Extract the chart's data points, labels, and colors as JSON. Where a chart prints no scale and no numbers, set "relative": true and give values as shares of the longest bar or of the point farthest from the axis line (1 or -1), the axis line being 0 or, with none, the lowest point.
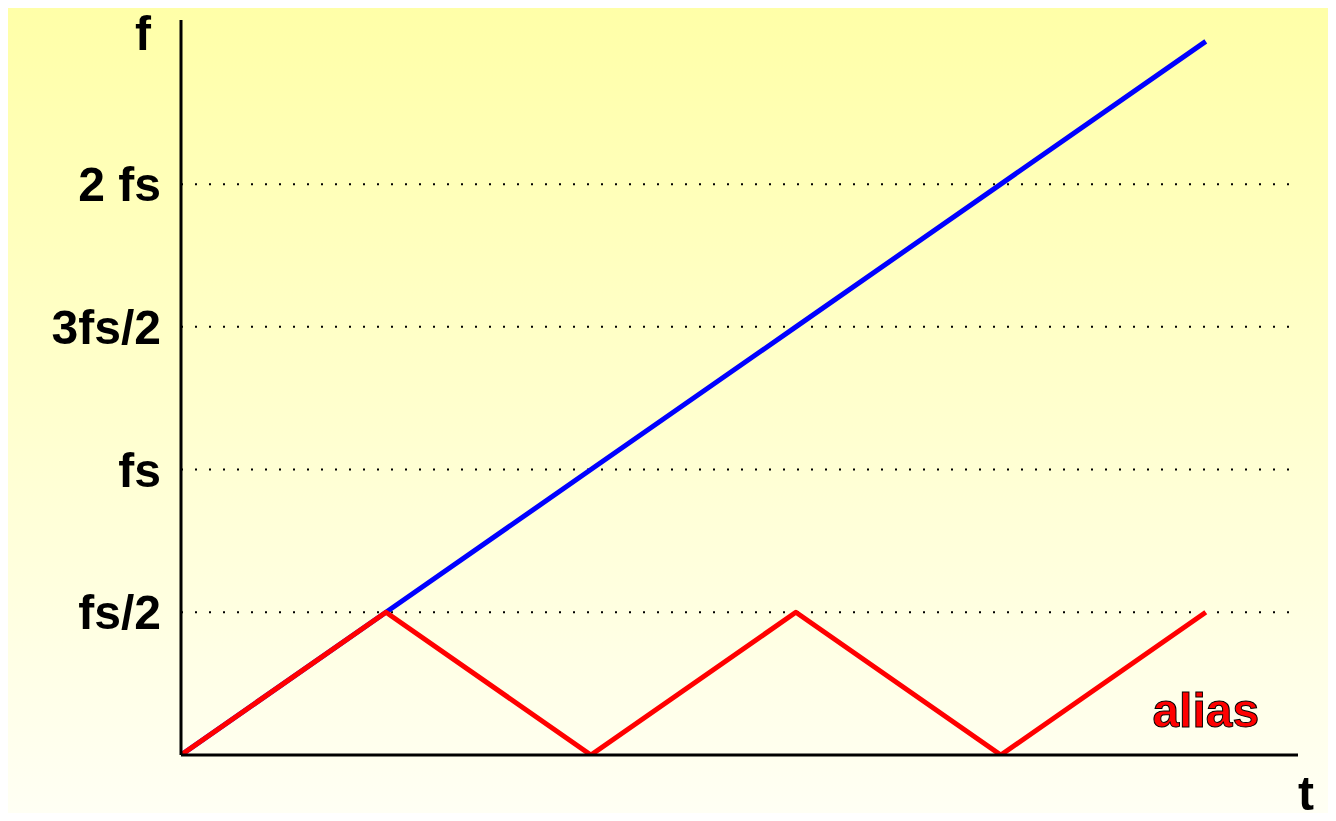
{
  "chart_data": {
    "type": "line",
    "xlabel": "t",
    "ylabel": "f",
    "relative": true,
    "categories": [
      null,
      null,
      null,
      null,
      null,
      null
    ],
    "marker": "none",
    "line_style": "solid",
    "ref_lines": [
      {
        "axis": "y",
        "value": 0.2,
        "label": "fs/2",
        "line_style": "dotted"
      },
      {
        "axis": "y",
        "value": 0.4,
        "label": "fs",
        "line_style": "dotted"
      },
      {
        "axis": "y",
        "value": 0.6,
        "label": "3fs/2",
        "line_style": "dotted"
      },
      {
        "axis": "y",
        "value": 0.8,
        "label": "2 fs",
        "line_style": "dotted"
      }
    ],
    "series": [
      {
        "color": "#0000ff",
        "values": [
          0,
          0.2,
          0.4,
          0.6,
          0.8,
          1
        ]
      },
      {
        "name": "alias",
        "color": "#ff0000",
        "values": [
          0,
          0.2,
          0,
          0.2,
          0,
          0.2
        ]
      }
    ]
  }
}
